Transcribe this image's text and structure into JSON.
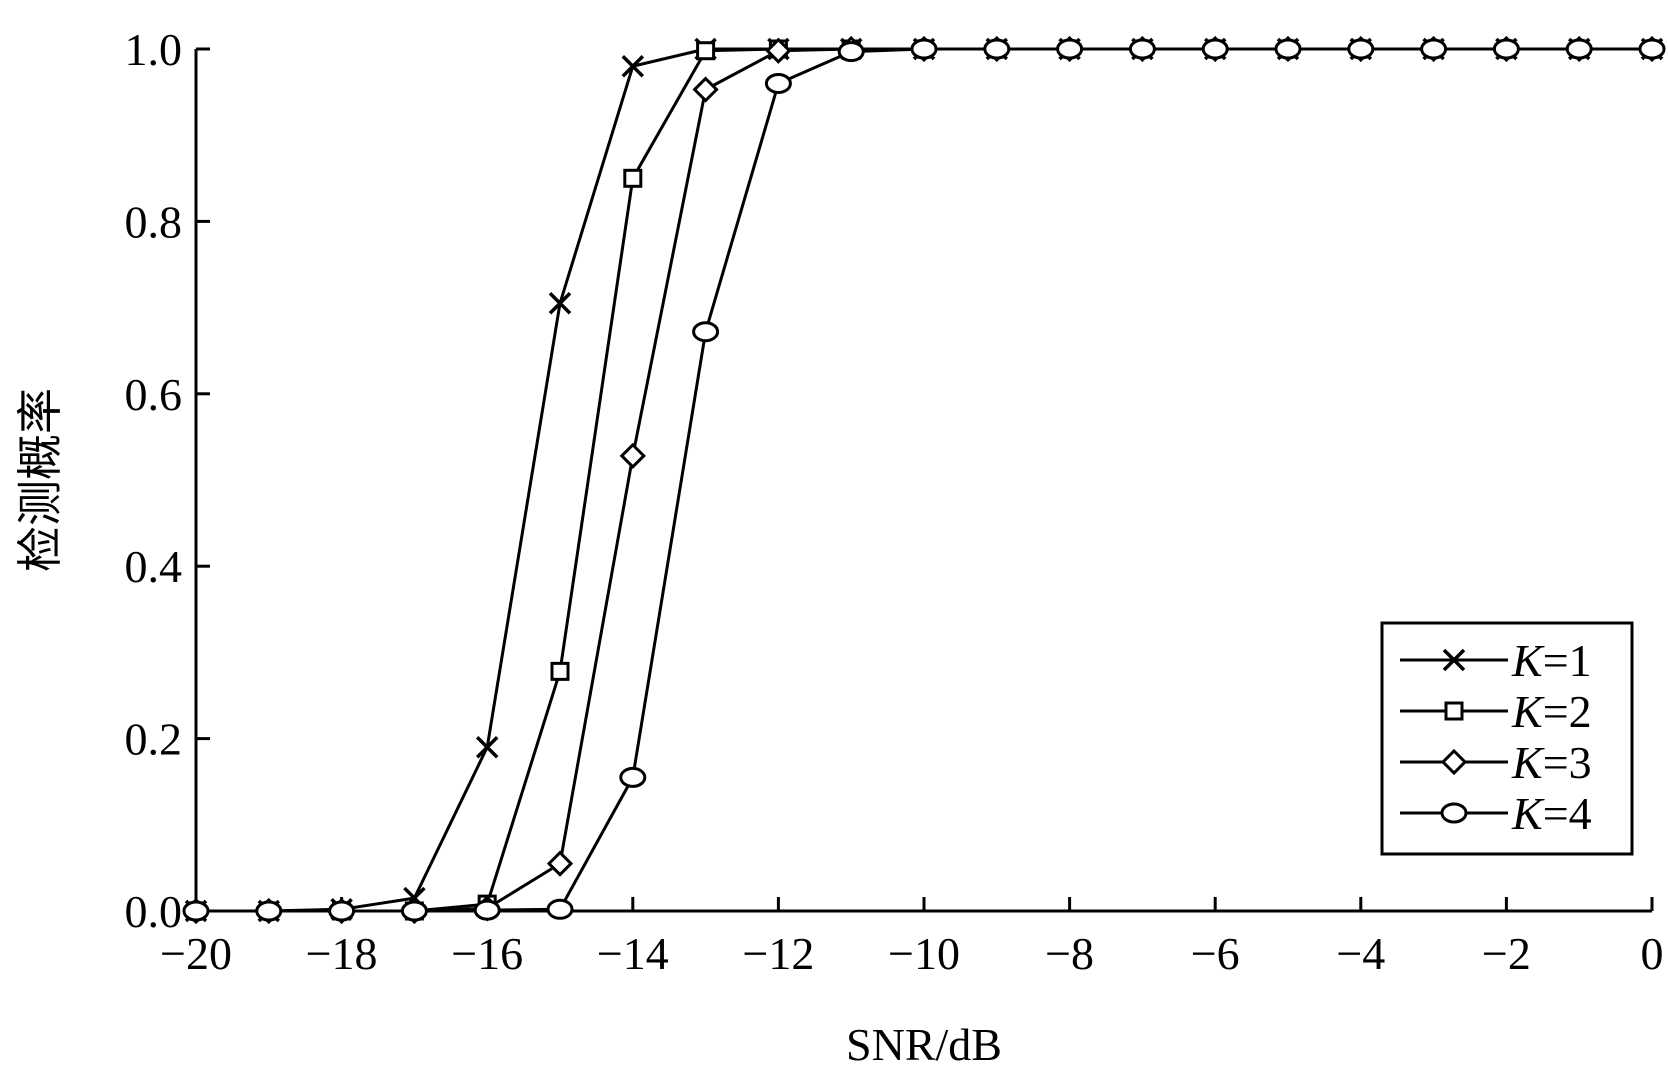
{
  "chart_data": {
    "type": "line",
    "title": "",
    "xlabel": "SNR/dB",
    "ylabel": "检测概率",
    "xlim": [
      -20,
      0
    ],
    "ylim": [
      0,
      1
    ],
    "grid": false,
    "legend_position": "bottom-right",
    "x_ticks": [
      -20,
      -18,
      -16,
      -14,
      -12,
      -10,
      -8,
      -6,
      -4,
      -2,
      0
    ],
    "x_tick_labels": [
      "−20",
      "−18",
      "−16",
      "−14",
      "−12",
      "−10",
      "−8",
      "−6",
      "−4",
      "−2",
      "0"
    ],
    "y_ticks": [
      0,
      0.2,
      0.4,
      0.6,
      0.8,
      1.0
    ],
    "y_tick_labels": [
      "0.0",
      "0.2",
      "0.4",
      "0.6",
      "0.8",
      "1.0"
    ],
    "x": [
      -20,
      -19,
      -18,
      -17,
      -16,
      -15,
      -14,
      -13,
      -12,
      -11,
      -10,
      -9,
      -8,
      -7,
      -6,
      -5,
      -4,
      -3,
      -2,
      -1,
      0
    ],
    "series": [
      {
        "name": "K=1",
        "var": "K",
        "num": "1",
        "marker": "x",
        "values": [
          0,
          0,
          0.002,
          0.015,
          0.19,
          0.705,
          0.98,
          1.0,
          1.0,
          1.0,
          1.0,
          1.0,
          1.0,
          1.0,
          1.0,
          1.0,
          1.0,
          1.0,
          1.0,
          1.0,
          1.0
        ]
      },
      {
        "name": "K=2",
        "var": "K",
        "num": "2",
        "marker": "square",
        "values": [
          0,
          0,
          0,
          0,
          0.008,
          0.278,
          0.85,
          0.998,
          1.0,
          1.0,
          1.0,
          1.0,
          1.0,
          1.0,
          1.0,
          1.0,
          1.0,
          1.0,
          1.0,
          1.0,
          1.0
        ]
      },
      {
        "name": "K=3",
        "var": "K",
        "num": "3",
        "marker": "diamond",
        "values": [
          0,
          0,
          0,
          0,
          0.003,
          0.055,
          0.528,
          0.953,
          0.998,
          1.0,
          1.0,
          1.0,
          1.0,
          1.0,
          1.0,
          1.0,
          1.0,
          1.0,
          1.0,
          1.0,
          1.0
        ]
      },
      {
        "name": "K=4",
        "var": "K",
        "num": "4",
        "marker": "circle",
        "values": [
          0,
          0,
          0,
          0,
          0.001,
          0.002,
          0.155,
          0.672,
          0.96,
          0.997,
          1.0,
          1.0,
          1.0,
          1.0,
          1.0,
          1.0,
          1.0,
          1.0,
          1.0,
          1.0,
          1.0
        ]
      }
    ]
  }
}
